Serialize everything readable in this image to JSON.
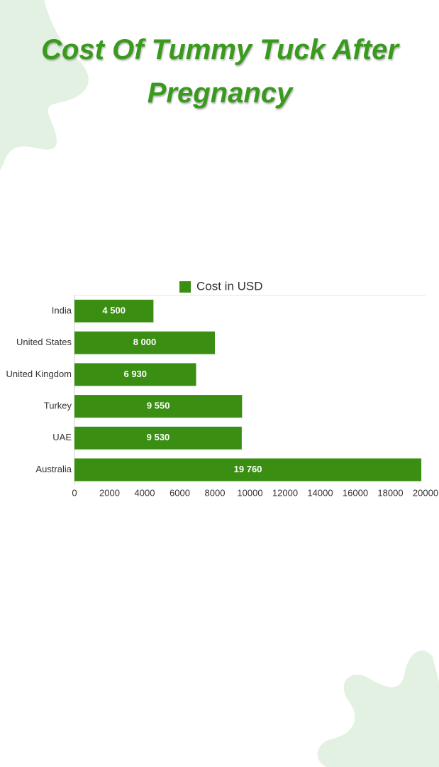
{
  "chart_data": {
    "type": "barh",
    "title": "Cost Of Tummy Tuck After Pregnancy",
    "categories": [
      "India",
      "United States",
      "United Kingdom",
      "Turkey",
      "UAE",
      "Australia"
    ],
    "series": [
      {
        "name": "Cost in USD",
        "color": "#3a8e12",
        "values": [
          4500,
          8000,
          6930,
          9550,
          9530,
          19760
        ],
        "value_labels": [
          "4 500",
          "8 000",
          "6 930",
          "9 550",
          "9 530",
          "19 760"
        ]
      }
    ],
    "xlim": [
      0,
      20000
    ],
    "xticks": [
      0,
      2000,
      4000,
      6000,
      8000,
      10000,
      12000,
      14000,
      16000,
      18000,
      20000
    ],
    "legend": "top",
    "grid": false
  }
}
